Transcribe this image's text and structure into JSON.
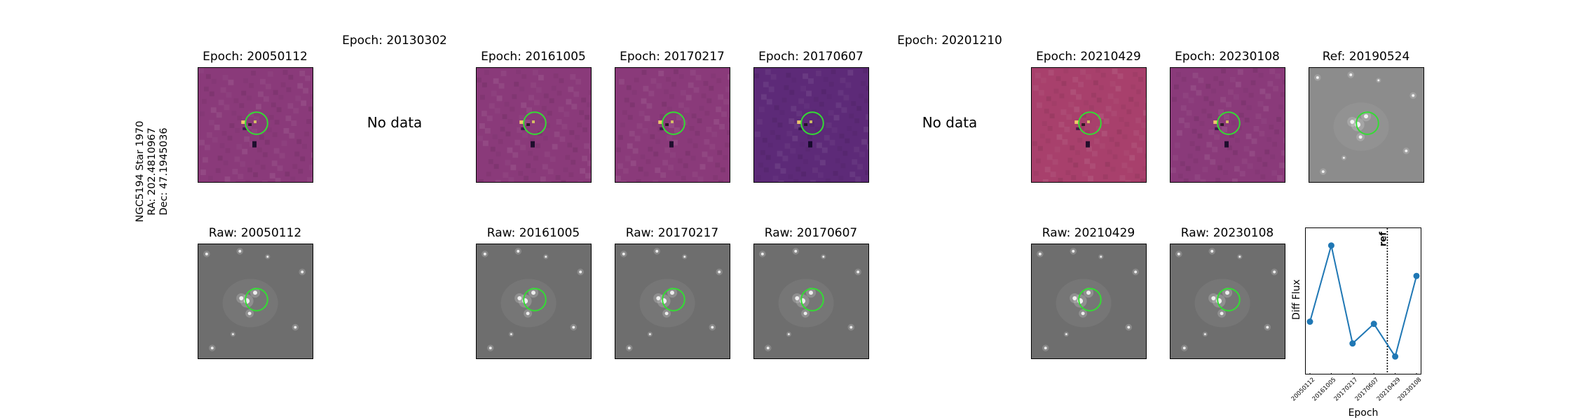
{
  "star_label": {
    "line1": "NGC5194 Star 1970",
    "line2": "RA: 202.4810967",
    "line3": "Dec: 47.1945036"
  },
  "top_row": [
    {
      "title": "Epoch: 20050112",
      "kind": "diff",
      "tone": "magenta"
    },
    {
      "title": "Epoch: 20130302",
      "kind": "nodata",
      "nodata_text": "No data"
    },
    {
      "title": "Epoch: 20161005",
      "kind": "diff",
      "tone": "magenta"
    },
    {
      "title": "Epoch: 20170217",
      "kind": "diff",
      "tone": "magenta"
    },
    {
      "title": "Epoch: 20170607",
      "kind": "diff",
      "tone": "purple"
    },
    {
      "title": "Epoch: 20201210",
      "kind": "nodata",
      "nodata_text": "No data"
    },
    {
      "title": "Epoch: 20210429",
      "kind": "diff",
      "tone": "orange"
    },
    {
      "title": "Epoch: 20230108",
      "kind": "diff",
      "tone": "magenta"
    },
    {
      "title": "Ref: 20190524",
      "kind": "raw",
      "tone": "light"
    }
  ],
  "bottom_row": [
    {
      "title": "Raw: 20050112",
      "slot": 0
    },
    {
      "title": "Raw: 20161005",
      "slot": 2
    },
    {
      "title": "Raw: 20170217",
      "slot": 3
    },
    {
      "title": "Raw: 20170607",
      "slot": 4
    },
    {
      "title": "Raw: 20210429",
      "slot": 6
    },
    {
      "title": "Raw: 20230108",
      "slot": 7
    }
  ],
  "colors": {
    "circle": "#33dd33",
    "line": "#1f77b4",
    "magenta": "#8a3a7a",
    "purple": "#5d2a78",
    "orange": "#a8406c",
    "gray_raw": "#6e6e6e",
    "gray_ref": "#8c8c8c"
  },
  "chart_data": {
    "type": "line",
    "categories": [
      "20050112",
      "20161005",
      "20170217",
      "20170607",
      "20210429",
      "20230108"
    ],
    "values": [
      0.18,
      0.88,
      -0.02,
      0.16,
      -0.14,
      0.6
    ],
    "xlabel": "Epoch",
    "ylabel": "Diff Flux",
    "ref_marker": {
      "label": "ref",
      "position_between": [
        "20170607",
        "20210429"
      ]
    },
    "grid": false,
    "legend": "none"
  }
}
